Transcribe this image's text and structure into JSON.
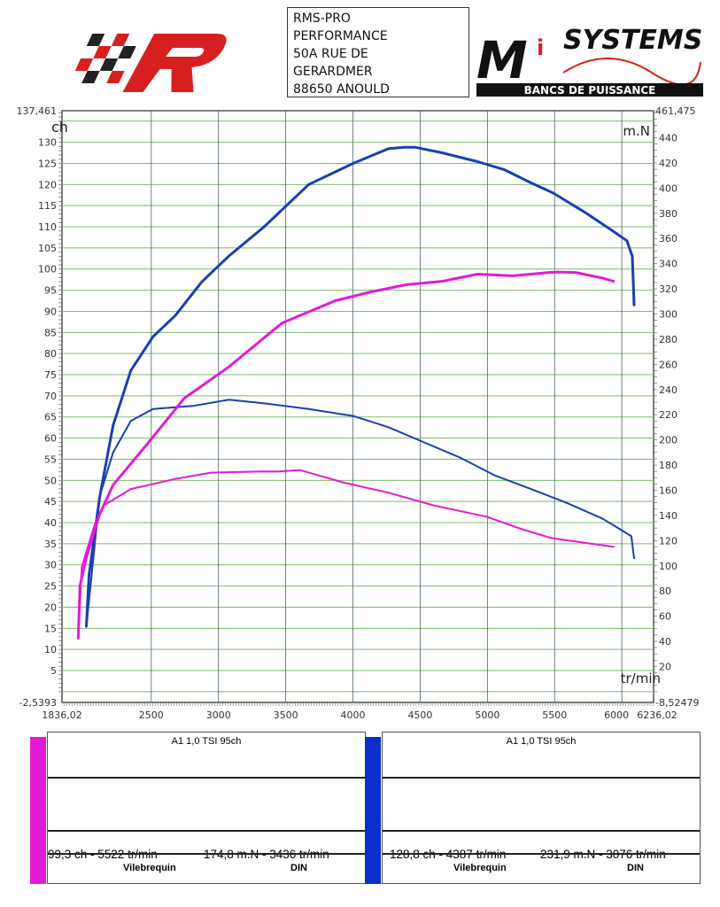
{
  "header": {
    "address_lines": [
      "RMS-PRO",
      "PERFORMANCE",
      "50A RUE DE",
      "GERARDMER",
      "88650 ANOULD"
    ],
    "logo_left_text": "R",
    "logo_right_text": "MiSYSTEMS",
    "logo_right_subtitle": "BANCS DE PUISSANCE"
  },
  "chart_data": {
    "type": "line",
    "xlabel": "tr/min",
    "ylabel_left": "ch",
    "ylabel_right": "m.N",
    "xlim": [
      1836.02,
      6236.02
    ],
    "ylim_left": [
      -2.5393,
      137.461
    ],
    "ylim_right": [
      -8.52479,
      461.475
    ],
    "x_ticks": [
      2500,
      3000,
      3500,
      4000,
      4500,
      5000,
      5500,
      6000
    ],
    "x_tick_labels": [
      "1836,02",
      "2500",
      "3000",
      "3500",
      "4000",
      "4500",
      "5000",
      "5500",
      "6000",
      "6236,02"
    ],
    "y_left_ticks": [
      5,
      10,
      15,
      20,
      25,
      30,
      35,
      40,
      45,
      50,
      55,
      60,
      65,
      70,
      75,
      80,
      85,
      90,
      95,
      100,
      105,
      110,
      115,
      120,
      125,
      130
    ],
    "y_left_extremes": [
      "137,461",
      "-2,5393"
    ],
    "y_right_ticks": [
      20,
      40,
      60,
      80,
      100,
      120,
      140,
      160,
      180,
      200,
      220,
      240,
      260,
      280,
      300,
      320,
      340,
      360,
      380,
      400,
      420,
      440
    ],
    "y_right_extremes": [
      "461,475",
      "-8,52479"
    ],
    "grid": true,
    "colors": {
      "pink": "#e21ad8",
      "blue": "#1a3fb0",
      "hgrid": "#7dbb6a",
      "vgrid": "#4a6670"
    },
    "series": [
      {
        "color": "#1a3fb0",
        "axis": "left",
        "kind": "power",
        "x": [
          2017,
          2037,
          2116,
          2216,
          2348,
          2513,
          2679,
          2877,
          3075,
          3340,
          3671,
          4001,
          4266,
          4387,
          4464,
          4663,
          4927,
          5126,
          5324,
          5489,
          5721,
          5919,
          6038,
          6078,
          6091
        ],
        "y": [
          15.5,
          27.5,
          46,
          63,
          76,
          84,
          89,
          97,
          103,
          110,
          120,
          125,
          128.5,
          128.8,
          128.8,
          127.5,
          125.4,
          123.5,
          120.4,
          118,
          113.5,
          109.3,
          106.7,
          103,
          91.5
        ]
      },
      {
        "color": "#1a3fb0",
        "axis": "right",
        "kind": "torque",
        "x": [
          2017,
          2116,
          2216,
          2348,
          2513,
          2811,
          3076,
          3340,
          3671,
          4001,
          4266,
          4530,
          4795,
          5060,
          5324,
          5589,
          5853,
          6018,
          6071,
          6091
        ],
        "y": [
          51.5,
          155,
          190,
          215,
          224.5,
          227,
          231.9,
          229,
          224.5,
          219,
          210,
          198,
          186,
          171.5,
          161,
          150,
          137.6,
          127,
          123.5,
          106
        ]
      },
      {
        "color": "#e21ad8",
        "axis": "left",
        "kind": "power",
        "x": [
          1957,
          1970,
          2017,
          2116,
          2216,
          2480,
          2745,
          3075,
          3472,
          3869,
          4134,
          4398,
          4663,
          4927,
          5192,
          5456,
          5522,
          5655,
          5853,
          5939
        ],
        "y": [
          12.8,
          25,
          31.7,
          42,
          48.9,
          59,
          69.4,
          76.8,
          87.2,
          92.5,
          94.6,
          96.3,
          97.1,
          98.8,
          98.4,
          99.2,
          99.3,
          99.2,
          97.9,
          97.1
        ]
      },
      {
        "color": "#e21ad8",
        "axis": "right",
        "kind": "torque",
        "x": [
          1957,
          1983,
          2083,
          2149,
          2348,
          2679,
          2944,
          3340,
          3436,
          3605,
          3936,
          4266,
          4597,
          4993,
          5258,
          5476,
          5939
        ],
        "y": [
          42,
          99,
          134,
          148,
          161,
          169,
          174,
          175,
          174.8,
          176,
          166,
          158,
          148,
          139,
          129,
          122,
          115
        ]
      }
    ]
  },
  "legend_cards": [
    {
      "color": "#e21ad8",
      "title": "A1 1,0 TSI 95ch",
      "power": "99,3 ch - 5522 tr/min",
      "torque": "174,8 m.N - 3436 tr/min",
      "mode": "Vilebrequin",
      "norm": "DIN"
    },
    {
      "color": "#0a2fc8",
      "title": "A1 1,0 TSI 95ch",
      "power": "128,8 ch - 4387 tr/min",
      "torque": "231,9 m.N - 3076 tr/min",
      "mode": "Vilebrequin",
      "norm": "DIN"
    }
  ]
}
